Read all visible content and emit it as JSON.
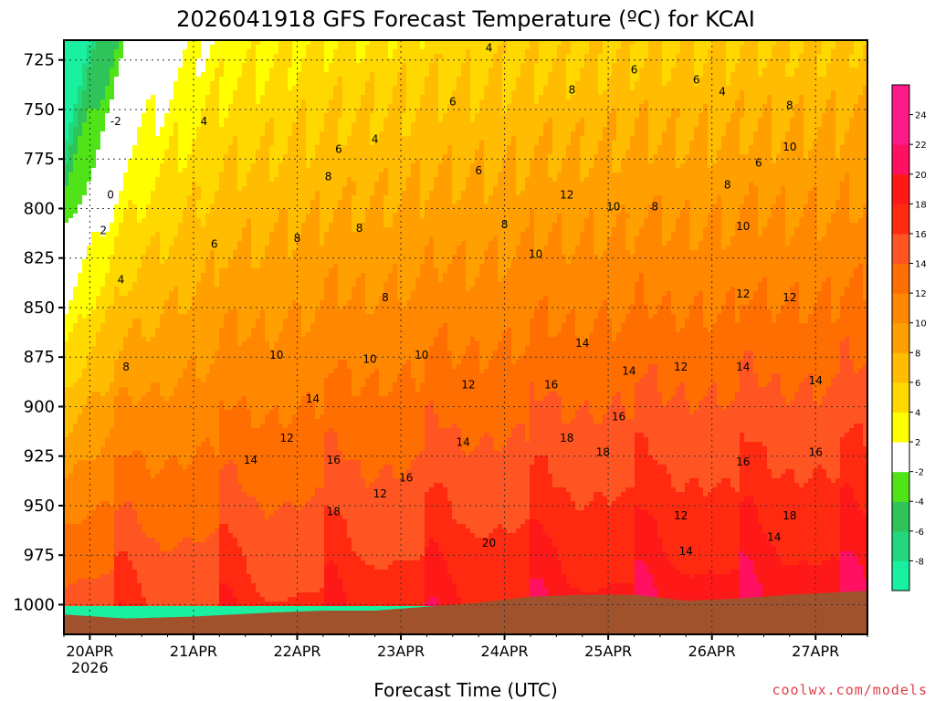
{
  "chart_data": {
    "type": "heatmap",
    "title": "2026041918 GFS Forecast Temperature (ºC) for KCAI",
    "xlabel": "Forecast Time (UTC)",
    "ylabel": "",
    "credit": "coolwx.com/models",
    "x_ticks": [
      {
        "label": "20APR",
        "sub": "2026",
        "day": 0.25
      },
      {
        "label": "21APR",
        "sub": "",
        "day": 1.25
      },
      {
        "label": "22APR",
        "sub": "",
        "day": 2.25
      },
      {
        "label": "23APR",
        "sub": "",
        "day": 3.25
      },
      {
        "label": "24APR",
        "sub": "",
        "day": 4.25
      },
      {
        "label": "25APR",
        "sub": "",
        "day": 5.25
      },
      {
        "label": "26APR",
        "sub": "",
        "day": 6.25
      },
      {
        "label": "27APR",
        "sub": "",
        "day": 7.25
      }
    ],
    "xlim": [
      0,
      7.75
    ],
    "y_ticks": [
      725,
      750,
      775,
      800,
      825,
      850,
      875,
      900,
      925,
      950,
      975,
      1000
    ],
    "ylim": [
      1015,
      715
    ],
    "grid": true,
    "colorbar": {
      "levels": [
        -8,
        -6,
        -4,
        -2,
        2,
        4,
        6,
        8,
        10,
        12,
        14,
        16,
        18,
        20,
        22,
        24
      ],
      "labels": [
        "-8",
        "-6",
        "-4",
        "-2",
        "2",
        "4",
        "6",
        "8",
        "10",
        "12",
        "14",
        "16",
        "18",
        "20",
        "22",
        "24"
      ],
      "colors": [
        "#19f0a0",
        "#22d87c",
        "#2ec45a",
        "#50e418",
        "#ffffff",
        "#ffff00",
        "#ffd800",
        "#ffbc00",
        "#ffa000",
        "#ff8800",
        "#ff6e00",
        "#ff5522",
        "#ff2a10",
        "#ff1818",
        "#ff1060",
        "#ff1a8a",
        "#ff1a8a"
      ]
    },
    "surface_pressure": [
      {
        "day": 0.0,
        "p": 1005
      },
      {
        "day": 0.6,
        "p": 1007
      },
      {
        "day": 1.25,
        "p": 1006
      },
      {
        "day": 2.0,
        "p": 1004
      },
      {
        "day": 2.5,
        "p": 1003
      },
      {
        "day": 3.0,
        "p": 1003
      },
      {
        "day": 3.5,
        "p": 1001
      },
      {
        "day": 4.0,
        "p": 999
      },
      {
        "day": 4.5,
        "p": 996
      },
      {
        "day": 5.0,
        "p": 995
      },
      {
        "day": 5.5,
        "p": 995
      },
      {
        "day": 6.0,
        "p": 998
      },
      {
        "day": 6.5,
        "p": 997
      },
      {
        "day": 7.0,
        "p": 995
      },
      {
        "day": 7.75,
        "p": 993
      }
    ],
    "contour_labels": [
      {
        "text": "-2",
        "day": 0.5,
        "p": 756
      },
      {
        "text": "0",
        "day": 0.45,
        "p": 793
      },
      {
        "text": "2",
        "day": 0.38,
        "p": 811
      },
      {
        "text": "4",
        "day": 0.55,
        "p": 836
      },
      {
        "text": "6",
        "day": 1.45,
        "p": 818
      },
      {
        "text": "4",
        "day": 1.35,
        "p": 756
      },
      {
        "text": "8",
        "day": 0.6,
        "p": 880
      },
      {
        "text": "10",
        "day": 2.05,
        "p": 874
      },
      {
        "text": "12",
        "day": 2.15,
        "p": 916
      },
      {
        "text": "14",
        "day": 1.8,
        "p": 927
      },
      {
        "text": "14",
        "day": 2.4,
        "p": 896
      },
      {
        "text": "16",
        "day": 2.6,
        "p": 927
      },
      {
        "text": "18",
        "day": 2.6,
        "p": 953
      },
      {
        "text": "12",
        "day": 3.05,
        "p": 944
      },
      {
        "text": "16",
        "day": 3.3,
        "p": 936
      },
      {
        "text": "10",
        "day": 2.95,
        "p": 876
      },
      {
        "text": "8",
        "day": 3.1,
        "p": 845
      },
      {
        "text": "8",
        "day": 2.25,
        "p": 815
      },
      {
        "text": "8",
        "day": 2.55,
        "p": 784
      },
      {
        "text": "8",
        "day": 2.85,
        "p": 810
      },
      {
        "text": "6",
        "day": 2.65,
        "p": 770
      },
      {
        "text": "4",
        "day": 3.0,
        "p": 765
      },
      {
        "text": "6",
        "day": 3.75,
        "p": 746
      },
      {
        "text": "6",
        "day": 4.0,
        "p": 781
      },
      {
        "text": "4",
        "day": 4.1,
        "p": 719
      },
      {
        "text": "10",
        "day": 3.45,
        "p": 874
      },
      {
        "text": "12",
        "day": 3.9,
        "p": 889
      },
      {
        "text": "14",
        "day": 3.85,
        "p": 918
      },
      {
        "text": "20",
        "day": 4.1,
        "p": 969
      },
      {
        "text": "8",
        "day": 4.25,
        "p": 808
      },
      {
        "text": "10",
        "day": 4.55,
        "p": 823
      },
      {
        "text": "12",
        "day": 4.85,
        "p": 793
      },
      {
        "text": "14",
        "day": 5.0,
        "p": 868
      },
      {
        "text": "16",
        "day": 4.7,
        "p": 889
      },
      {
        "text": "18",
        "day": 4.85,
        "p": 916
      },
      {
        "text": "18",
        "day": 5.2,
        "p": 923
      },
      {
        "text": "16",
        "day": 5.35,
        "p": 905
      },
      {
        "text": "14",
        "day": 5.45,
        "p": 882
      },
      {
        "text": "8",
        "day": 4.9,
        "p": 740
      },
      {
        "text": "10",
        "day": 5.3,
        "p": 799
      },
      {
        "text": "8",
        "day": 5.7,
        "p": 799
      },
      {
        "text": "6",
        "day": 5.5,
        "p": 730
      },
      {
        "text": "6",
        "day": 6.1,
        "p": 735
      },
      {
        "text": "4",
        "day": 6.35,
        "p": 741
      },
      {
        "text": "12",
        "day": 5.95,
        "p": 880
      },
      {
        "text": "12",
        "day": 5.95,
        "p": 955
      },
      {
        "text": "14",
        "day": 6.0,
        "p": 973
      },
      {
        "text": "14",
        "day": 6.55,
        "p": 880
      },
      {
        "text": "16",
        "day": 6.55,
        "p": 928
      },
      {
        "text": "12",
        "day": 6.55,
        "p": 843
      },
      {
        "text": "10",
        "day": 6.55,
        "p": 809
      },
      {
        "text": "8",
        "day": 6.4,
        "p": 788
      },
      {
        "text": "6",
        "day": 6.7,
        "p": 777
      },
      {
        "text": "8",
        "day": 7.0,
        "p": 748
      },
      {
        "text": "10",
        "day": 7.0,
        "p": 769
      },
      {
        "text": "12",
        "day": 7.0,
        "p": 845
      },
      {
        "text": "14",
        "day": 6.85,
        "p": 966
      },
      {
        "text": "14",
        "day": 7.25,
        "p": 887
      },
      {
        "text": "16",
        "day": 7.25,
        "p": 923
      },
      {
        "text": "18",
        "day": 7.0,
        "p": 955
      }
    ]
  }
}
